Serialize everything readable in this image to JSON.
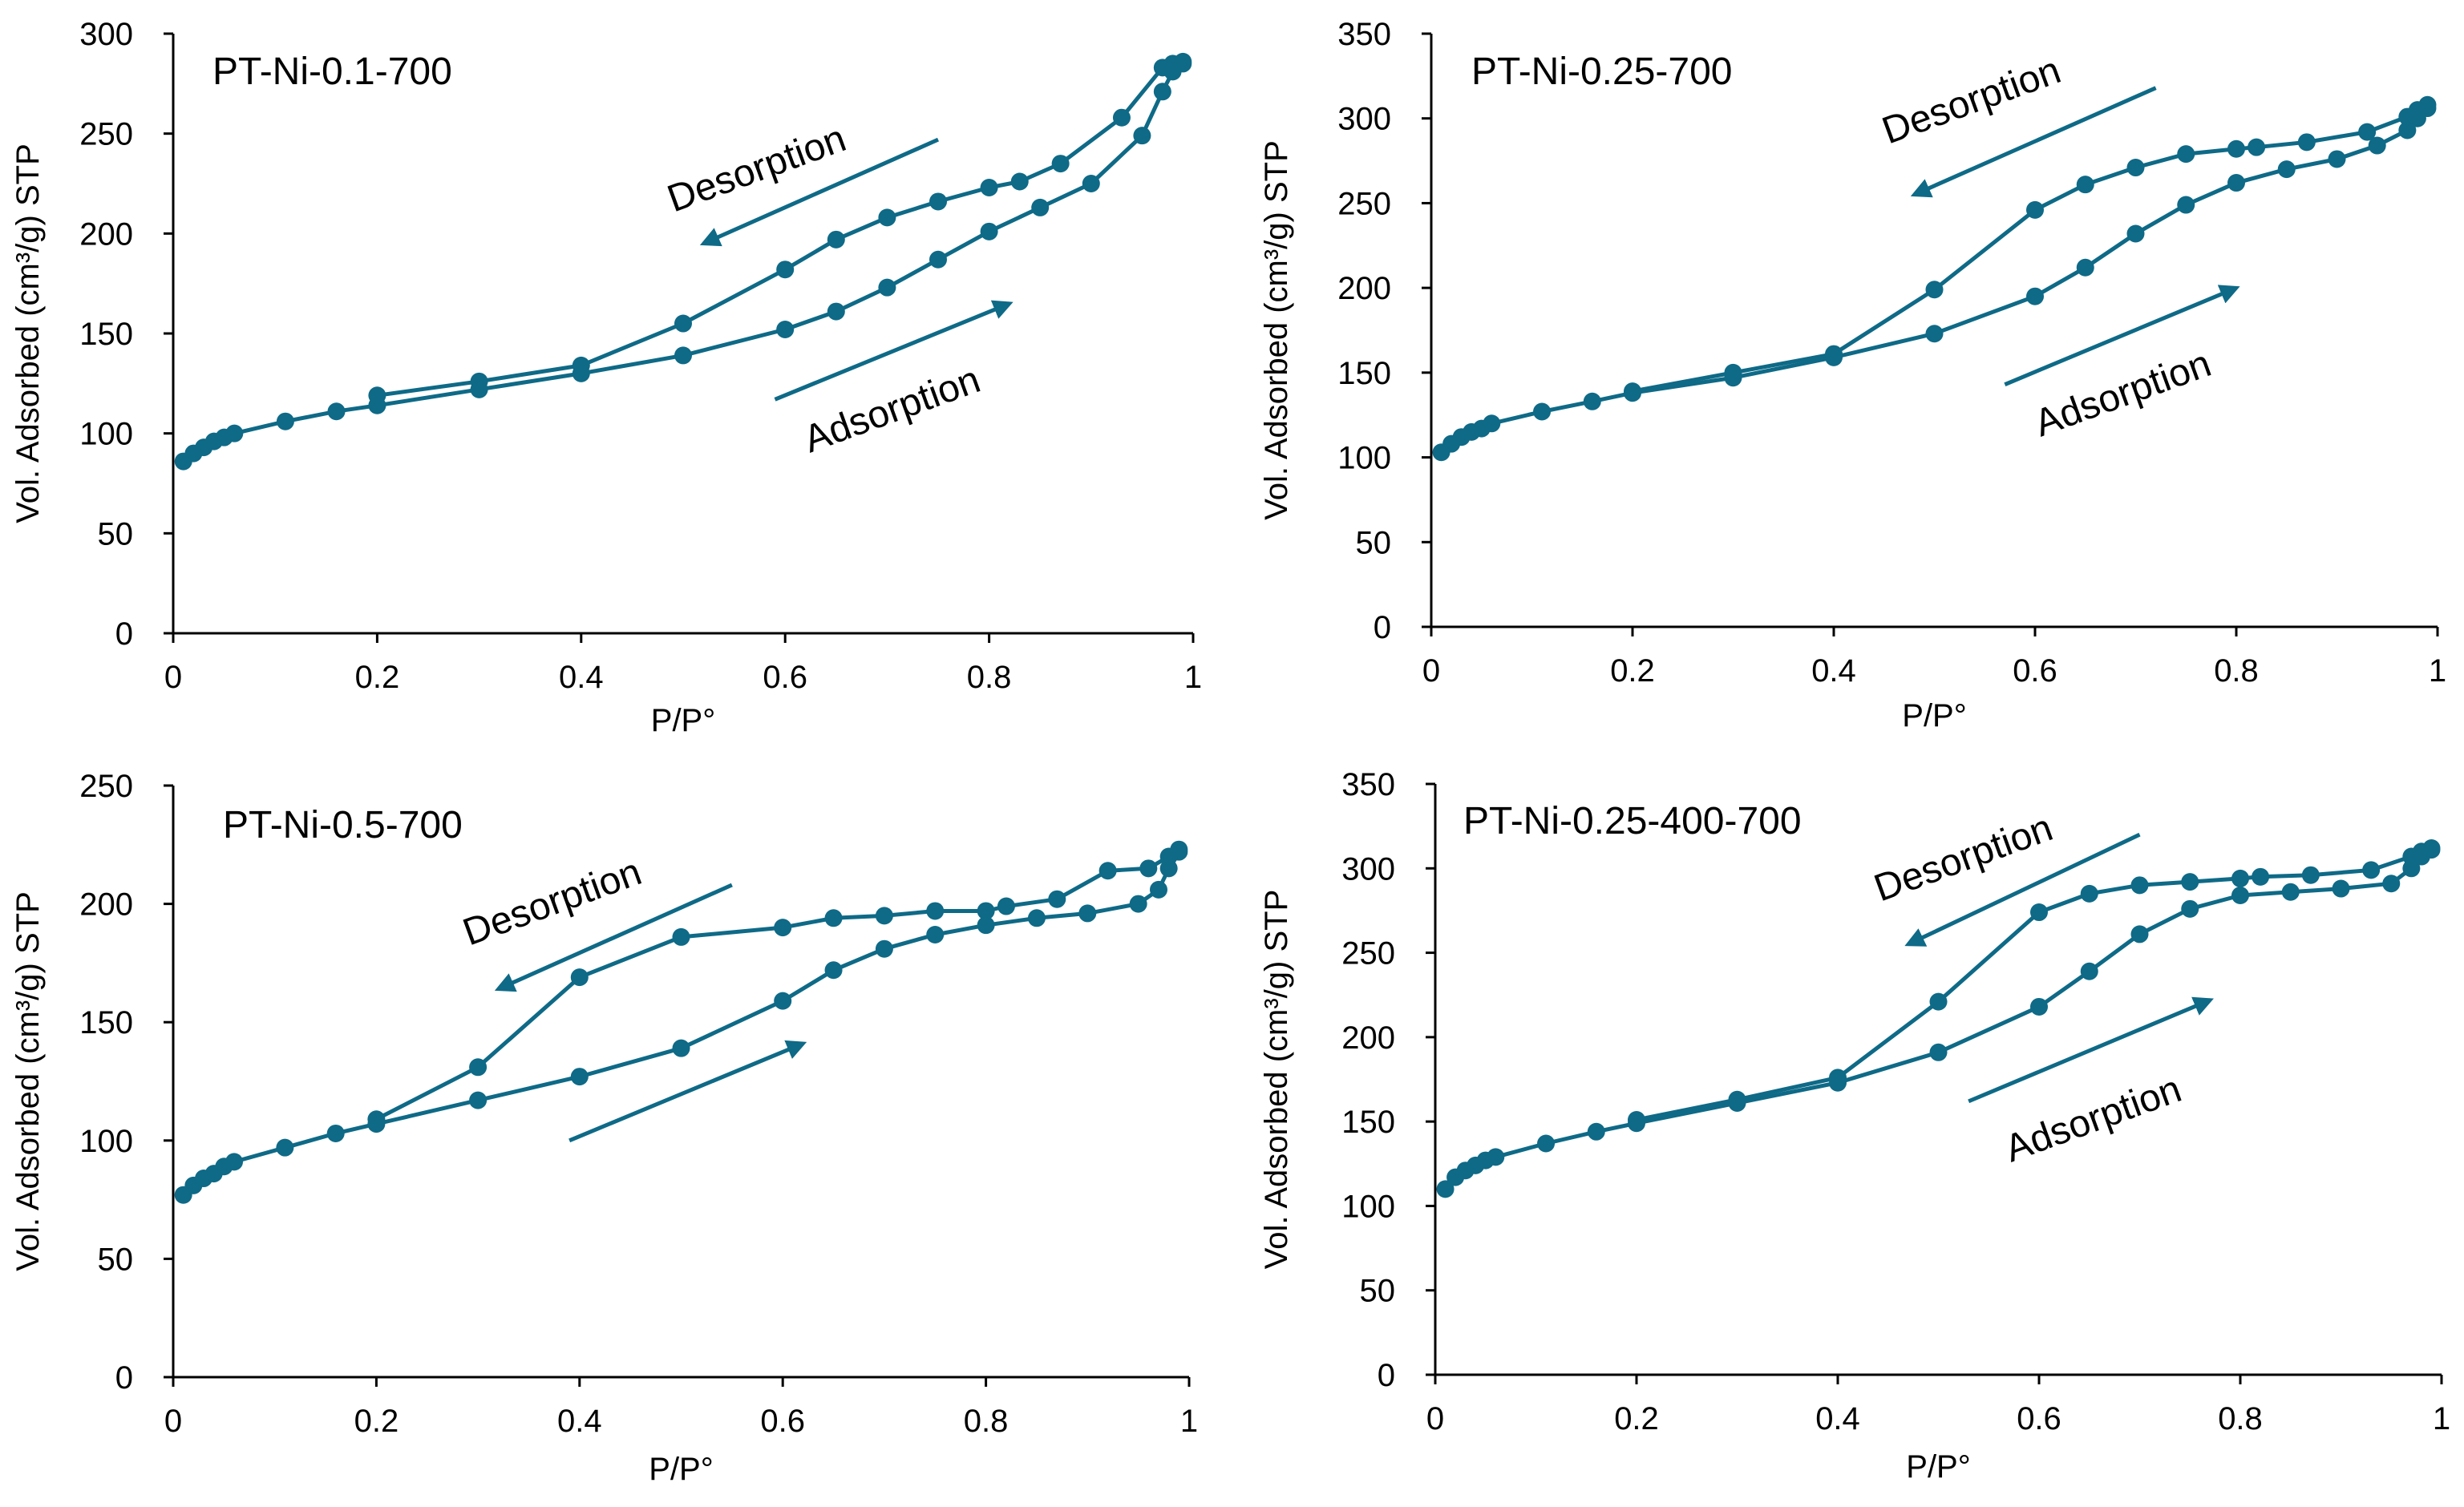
{
  "colors": {
    "series": "#0e6a87",
    "axis": "#000000",
    "background": "#ffffff"
  },
  "chart_data": [
    {
      "type": "line",
      "title": "PT-Ni-0.1-700",
      "xlabel": "P/P°",
      "ylabel": "Vol. Adsorbed (cm³/g) STP",
      "xlim": [
        0,
        1
      ],
      "ylim": [
        0,
        300
      ],
      "xticks": [
        "0",
        "0.2",
        "0.4",
        "0.6",
        "0.8",
        "1"
      ],
      "yticks": [
        "0",
        "50",
        "100",
        "150",
        "200",
        "250",
        "300"
      ],
      "series": [
        {
          "name": "Adsorption",
          "x": [
            0.01,
            0.02,
            0.03,
            0.04,
            0.05,
            0.06,
            0.11,
            0.16,
            0.2,
            0.3,
            0.4,
            0.5,
            0.6,
            0.65,
            0.7,
            0.75,
            0.8,
            0.85,
            0.9,
            0.95,
            0.97,
            0.98,
            0.99
          ],
          "y": [
            86,
            90,
            93,
            96,
            98,
            100,
            106,
            111,
            114,
            122,
            130,
            139,
            152,
            161,
            173,
            187,
            201,
            213,
            225,
            249,
            271,
            281,
            285
          ]
        },
        {
          "name": "Desorption",
          "x": [
            0.99,
            0.98,
            0.97,
            0.93,
            0.87,
            0.83,
            0.8,
            0.75,
            0.7,
            0.65,
            0.6,
            0.5,
            0.4,
            0.3,
            0.2
          ],
          "y": [
            286,
            285,
            283,
            258,
            235,
            226,
            223,
            216,
            208,
            197,
            182,
            155,
            134,
            126,
            119
          ]
        }
      ],
      "annotations": [
        {
          "text": "Desorption",
          "arrow_from": [
            0.75,
            247
          ],
          "arrow_to": [
            0.52,
            195
          ]
        },
        {
          "text": "Adsorption",
          "arrow_from": [
            0.59,
            117
          ],
          "arrow_to": [
            0.82,
            165
          ]
        }
      ]
    },
    {
      "type": "line",
      "title": "PT-Ni-0.25-700",
      "xlabel": "P/P°",
      "ylabel": "Vol. Adsorbed (cm³/g) STP",
      "xlim": [
        0,
        1
      ],
      "ylim": [
        0,
        350
      ],
      "xticks": [
        "0",
        "0.2",
        "0.4",
        "0.6",
        "0.8",
        "1"
      ],
      "yticks": [
        "0",
        "50",
        "100",
        "150",
        "200",
        "250",
        "300",
        "350"
      ],
      "series": [
        {
          "name": "Adsorption",
          "x": [
            0.01,
            0.02,
            0.03,
            0.04,
            0.05,
            0.06,
            0.11,
            0.16,
            0.2,
            0.3,
            0.4,
            0.5,
            0.6,
            0.65,
            0.7,
            0.75,
            0.8,
            0.85,
            0.9,
            0.94,
            0.97,
            0.98,
            0.99
          ],
          "y": [
            103,
            108,
            112,
            115,
            117,
            120,
            127,
            133,
            138,
            147,
            159,
            173,
            195,
            212,
            232,
            249,
            262,
            270,
            276,
            284,
            293,
            300,
            306
          ]
        },
        {
          "name": "Desorption",
          "x": [
            0.99,
            0.98,
            0.97,
            0.93,
            0.87,
            0.82,
            0.8,
            0.75,
            0.7,
            0.65,
            0.6,
            0.5,
            0.4,
            0.3,
            0.2
          ],
          "y": [
            308,
            305,
            301,
            292,
            286,
            283,
            282,
            279,
            271,
            261,
            246,
            199,
            161,
            150,
            139
          ]
        }
      ],
      "annotations": [
        {
          "text": "Desorption",
          "arrow_from": [
            0.72,
            318
          ],
          "arrow_to": [
            0.48,
            255
          ]
        },
        {
          "text": "Adsorption",
          "arrow_from": [
            0.57,
            143
          ],
          "arrow_to": [
            0.8,
            200
          ]
        }
      ]
    },
    {
      "type": "line",
      "title": "PT-Ni-0.5-700",
      "xlabel": "P/P°",
      "ylabel": "Vol. Adsorbed (cm³/g) STP",
      "xlim": [
        0,
        1
      ],
      "ylim": [
        0,
        250
      ],
      "xticks": [
        "0",
        "0.2",
        "0.4",
        "0.6",
        "0.8",
        "1"
      ],
      "yticks": [
        "0",
        "50",
        "100",
        "150",
        "200",
        "250"
      ],
      "series": [
        {
          "name": "Adsorption",
          "x": [
            0.01,
            0.02,
            0.03,
            0.04,
            0.05,
            0.06,
            0.11,
            0.16,
            0.2,
            0.3,
            0.4,
            0.5,
            0.6,
            0.65,
            0.7,
            0.75,
            0.8,
            0.85,
            0.9,
            0.95,
            0.97,
            0.98,
            0.99
          ],
          "y": [
            77,
            81,
            84,
            86,
            89,
            91,
            97,
            103,
            107,
            117,
            127,
            139,
            159,
            172,
            181,
            187,
            191,
            194,
            196,
            200,
            206,
            215,
            222
          ]
        },
        {
          "name": "Desorption",
          "x": [
            0.99,
            0.98,
            0.96,
            0.92,
            0.87,
            0.82,
            0.8,
            0.75,
            0.7,
            0.65,
            0.6,
            0.5,
            0.4,
            0.3,
            0.2
          ],
          "y": [
            223,
            220,
            215,
            214,
            202,
            199,
            197,
            197,
            195,
            194,
            190,
            186,
            169,
            131,
            109
          ]
        }
      ],
      "annotations": [
        {
          "text": "Desorption",
          "arrow_from": [
            0.55,
            208
          ],
          "arrow_to": [
            0.32,
            164
          ]
        },
        {
          "text": "",
          "arrow_from": [
            0.39,
            100
          ],
          "arrow_to": [
            0.62,
            141
          ]
        }
      ]
    },
    {
      "type": "line",
      "title": "PT-Ni-0.25-400-700",
      "xlabel": "P/P°",
      "ylabel": "Vol. Adsorbed (cm³/g) STP",
      "xlim": [
        0,
        1
      ],
      "ylim": [
        0,
        350
      ],
      "xticks": [
        "0",
        "0.2",
        "0.4",
        "0.6",
        "0.8",
        "1"
      ],
      "yticks": [
        "0",
        "50",
        "100",
        "150",
        "200",
        "250",
        "300",
        "350"
      ],
      "series": [
        {
          "name": "Adsorption",
          "x": [
            0.01,
            0.02,
            0.03,
            0.04,
            0.05,
            0.06,
            0.11,
            0.16,
            0.2,
            0.3,
            0.4,
            0.5,
            0.6,
            0.65,
            0.7,
            0.75,
            0.8,
            0.85,
            0.9,
            0.95,
            0.97,
            0.98,
            0.99
          ],
          "y": [
            110,
            117,
            121,
            124,
            127,
            129,
            137,
            144,
            149,
            161,
            173,
            191,
            218,
            239,
            261,
            276,
            284,
            286,
            288,
            291,
            300,
            307,
            311
          ]
        },
        {
          "name": "Desorption",
          "x": [
            0.99,
            0.98,
            0.97,
            0.93,
            0.87,
            0.82,
            0.8,
            0.75,
            0.7,
            0.65,
            0.6,
            0.5,
            0.4,
            0.3,
            0.2
          ],
          "y": [
            312,
            310,
            307,
            299,
            296,
            295,
            294,
            292,
            290,
            285,
            274,
            221,
            176,
            163,
            151
          ]
        }
      ],
      "annotations": [
        {
          "text": "Desorption",
          "arrow_from": [
            0.7,
            320
          ],
          "arrow_to": [
            0.47,
            255
          ]
        },
        {
          "text": "Adsorption",
          "arrow_from": [
            0.53,
            162
          ],
          "arrow_to": [
            0.77,
            222
          ]
        }
      ]
    }
  ]
}
